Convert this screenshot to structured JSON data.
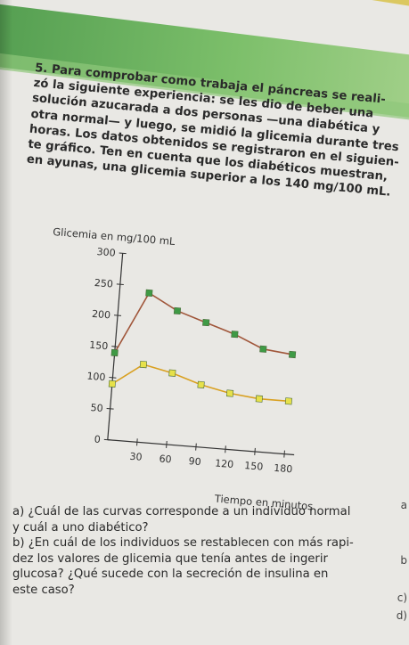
{
  "problem": {
    "number": "5.",
    "lines": [
      "Para comprobar como trabaja el páncreas se reali-",
      "zó la siguiente experiencia: se les dio de beber una",
      "solución azucarada a dos personas —una diabética y",
      "otra normal— y luego, se midió la glicemia durante tres",
      "horas. Los datos obtenidos se registraron en el siguien-",
      "te gráfico. Ten en cuenta que los diabéticos muestran,",
      "en ayunas, una glicemia superior a los 140 mg/100 mL."
    ]
  },
  "chart_data": {
    "type": "line",
    "ylabel": "Glicemia en mg/100 mL",
    "xlabel": "Tiempo en minutos",
    "xlim": [
      0,
      190
    ],
    "ylim": [
      0,
      300
    ],
    "x_ticks": [
      30,
      60,
      90,
      120,
      150,
      180
    ],
    "y_ticks": [
      0,
      50,
      100,
      150,
      200,
      250,
      300
    ],
    "x": [
      0,
      30,
      60,
      90,
      120,
      150,
      180
    ],
    "series": [
      {
        "values": [
          140,
          240,
          215,
          200,
          185,
          165,
          160
        ],
        "color": "#a0563a",
        "marker_color": "#3f9a45"
      },
      {
        "values": [
          90,
          125,
          115,
          100,
          90,
          85,
          85
        ],
        "color": "#d9a020",
        "marker_color": "#e6e14a"
      }
    ]
  },
  "questions": [
    {
      "lines": [
        "a) ¿Cuál de las curvas corresponde a un individuo normal",
        "    y cuál a uno diabético?"
      ]
    },
    {
      "lines": [
        "b) ¿En cuál de los individuos se restablecen con más rapi-",
        "    dez los valores de glicemia que tenía antes de ingerir",
        "    glucosa? ¿Qué sucede con la secreción de insulina en",
        "    este caso?"
      ]
    }
  ],
  "margin_letters": [
    "a",
    "b",
    "c)",
    "d)"
  ]
}
